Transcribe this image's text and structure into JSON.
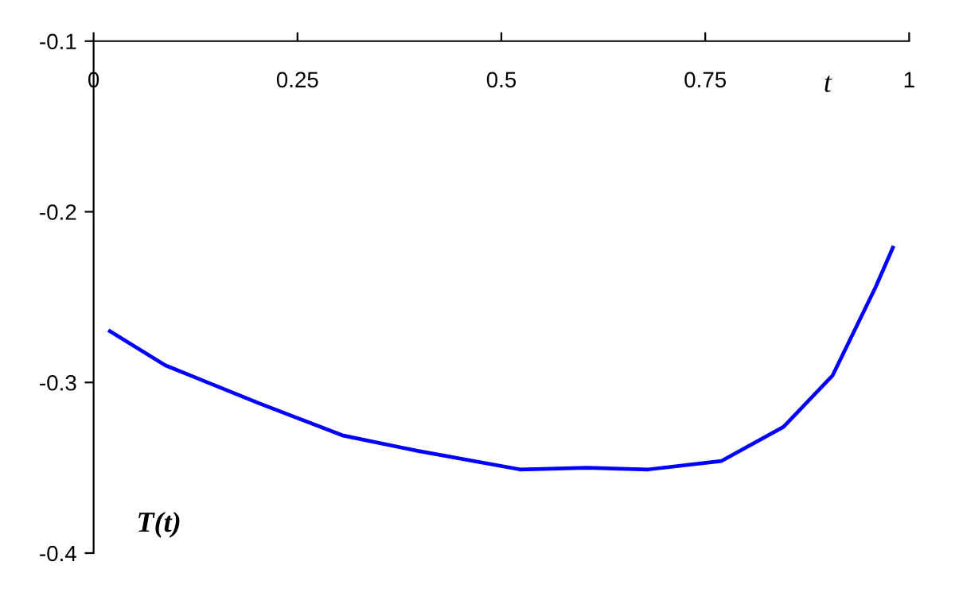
{
  "chart_data": {
    "type": "line",
    "xlabel": "t",
    "ylabel": "T(t)",
    "x": [
      0.02,
      0.088,
      0.207,
      0.305,
      0.396,
      0.523,
      0.605,
      0.68,
      0.77,
      0.846,
      0.906,
      0.959,
      0.98
    ],
    "series": [
      {
        "color": "#0000ff",
        "values": [
          -0.27,
          -0.29,
          -0.313,
          -0.331,
          -0.34,
          -0.351,
          -0.35,
          -0.351,
          -0.346,
          -0.326,
          -0.296,
          -0.244,
          -0.221
        ]
      }
    ],
    "xlim": [
      0,
      1
    ],
    "xticks": [
      0,
      0.25,
      0.5,
      0.75,
      1
    ],
    "ylim": [
      -0.4,
      -0.1
    ],
    "yticks": [
      -0.4,
      -0.3,
      -0.2,
      -0.1
    ],
    "grid": false,
    "marker": "none",
    "line_style": "solid"
  }
}
